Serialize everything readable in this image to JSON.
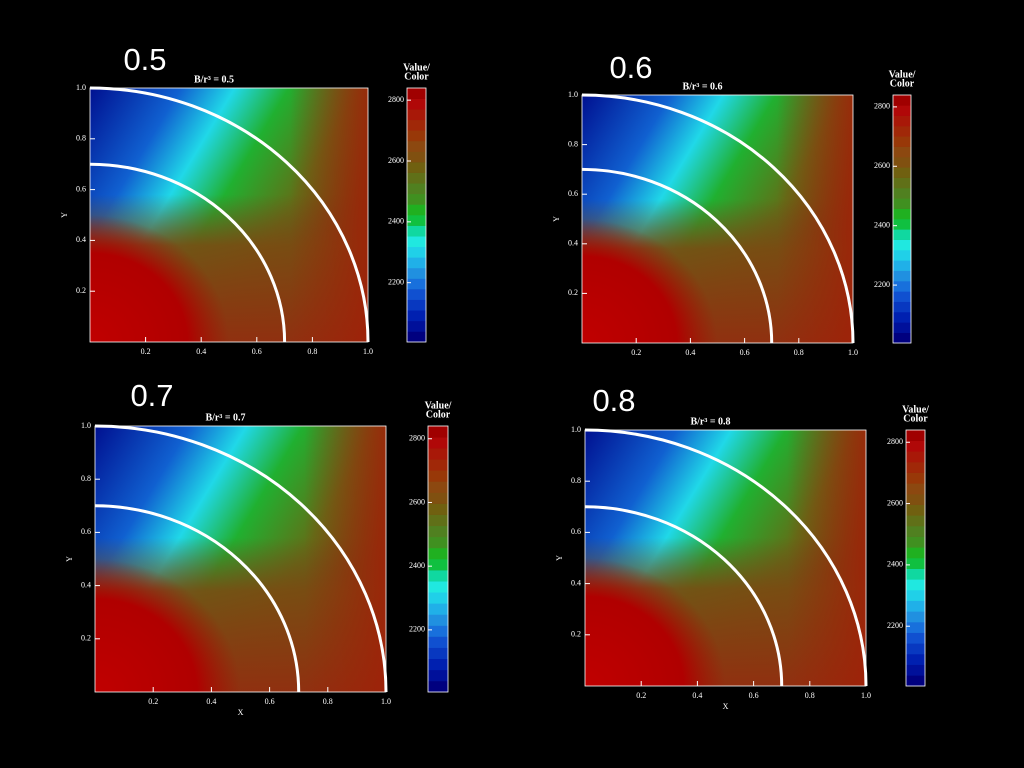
{
  "chart_data": [
    {
      "type": "contour",
      "panel_label": "0.5",
      "title": "B/r³ = 0.5",
      "ylabel": "Y",
      "xlim": [
        0,
        1
      ],
      "ylim": [
        0,
        1
      ],
      "xticks": [
        0.2,
        0.4,
        0.6,
        0.8,
        {
          "value": 1,
          "label": "1.0"
        }
      ],
      "yticks": [
        0.2,
        0.4,
        0.6,
        0.8,
        {
          "value": 1,
          "label": "1.0"
        }
      ],
      "circles": [
        0.7,
        1
      ],
      "colorbar": {
        "title": [
          "Value/",
          "Color"
        ],
        "lim": [
          2005,
          2840
        ],
        "ticks": [
          2200,
          2400,
          2600,
          2800
        ],
        "colors": [
          "#00007f",
          "#00109a",
          "#0020b0",
          "#0838c0",
          "#1050d0",
          "#1870dc",
          "#2090e0",
          "#20b0e8",
          "#20d0e8",
          "#20e8e0",
          "#10d8a0",
          "#10c040",
          "#20b020",
          "#409020",
          "#508020",
          "#607018",
          "#706010",
          "#805010",
          "#8c4810",
          "#983808",
          "#a02808",
          "#a81808",
          "#b00808",
          "#a00000"
        ]
      }
    },
    {
      "type": "contour",
      "panel_label": "0.6",
      "title": "B/r³ = 0.6",
      "ylabel": "Y",
      "xlim": [
        0,
        1
      ],
      "ylim": [
        0,
        1
      ],
      "xticks": [
        0.2,
        0.4,
        0.6,
        0.8,
        {
          "value": 1,
          "label": "1.0"
        }
      ],
      "yticks": [
        0.2,
        0.4,
        0.6,
        0.8,
        {
          "value": 1,
          "label": "1.0"
        }
      ],
      "circles": [
        0.7,
        1
      ],
      "colorbar": {
        "title": [
          "Value/",
          "Color"
        ],
        "lim": [
          2005,
          2840
        ],
        "ticks": [
          2200,
          2400,
          2600,
          2800
        ],
        "colors": [
          "#00007f",
          "#00109a",
          "#0020b0",
          "#0838c0",
          "#1050d0",
          "#1870dc",
          "#2090e0",
          "#20b0e8",
          "#20d0e8",
          "#20e8e0",
          "#10d8a0",
          "#10c040",
          "#20b020",
          "#409020",
          "#508020",
          "#607018",
          "#706010",
          "#805010",
          "#8c4810",
          "#983808",
          "#a02808",
          "#a81808",
          "#b00808",
          "#a00000"
        ]
      }
    },
    {
      "type": "contour",
      "panel_label": "0.7",
      "title": "B/r³ = 0.7",
      "xlabel": "X",
      "ylabel": "Y",
      "xlim": [
        0,
        1
      ],
      "ylim": [
        0,
        1
      ],
      "xticks": [
        0.2,
        0.4,
        0.6,
        0.8,
        {
          "value": 1,
          "label": "1.0"
        }
      ],
      "yticks": [
        0.2,
        0.4,
        0.6,
        0.8,
        {
          "value": 1,
          "label": "1.0"
        }
      ],
      "circles": [
        0.7,
        1
      ],
      "colorbar": {
        "title": [
          "Value/",
          "Color"
        ],
        "lim": [
          2005,
          2840
        ],
        "ticks": [
          2200,
          2400,
          2600,
          2800
        ],
        "colors": [
          "#00007f",
          "#00109a",
          "#0020b0",
          "#0838c0",
          "#1050d0",
          "#1870dc",
          "#2090e0",
          "#20b0e8",
          "#20d0e8",
          "#20e8e0",
          "#10d8a0",
          "#10c040",
          "#20b020",
          "#409020",
          "#508020",
          "#607018",
          "#706010",
          "#805010",
          "#8c4810",
          "#983808",
          "#a02808",
          "#a81808",
          "#b00808",
          "#a00000"
        ]
      }
    },
    {
      "type": "contour",
      "panel_label": "0.8",
      "title": "B/r³ = 0.8",
      "xlabel": "X",
      "ylabel": "Y",
      "xlim": [
        0,
        1
      ],
      "ylim": [
        0,
        1
      ],
      "xticks": [
        0.2,
        0.4,
        0.6,
        0.8,
        {
          "value": 1,
          "label": "1.0"
        }
      ],
      "yticks": [
        0.2,
        0.4,
        0.6,
        0.8,
        {
          "value": 1,
          "label": "1.0"
        }
      ],
      "circles": [
        0.7,
        1
      ],
      "colorbar": {
        "title": [
          "Value/",
          "Color"
        ],
        "lim": [
          2005,
          2840
        ],
        "ticks": [
          2200,
          2400,
          2600,
          2800
        ],
        "colors": [
          "#00007f",
          "#00109a",
          "#0020b0",
          "#0838c0",
          "#1050d0",
          "#1870dc",
          "#2090e0",
          "#20b0e8",
          "#20d0e8",
          "#20e8e0",
          "#10d8a0",
          "#10c040",
          "#20b020",
          "#409020",
          "#508020",
          "#607018",
          "#706010",
          "#805010",
          "#8c4810",
          "#983808",
          "#a02808",
          "#a81808",
          "#b00808",
          "#a00000"
        ]
      }
    }
  ]
}
